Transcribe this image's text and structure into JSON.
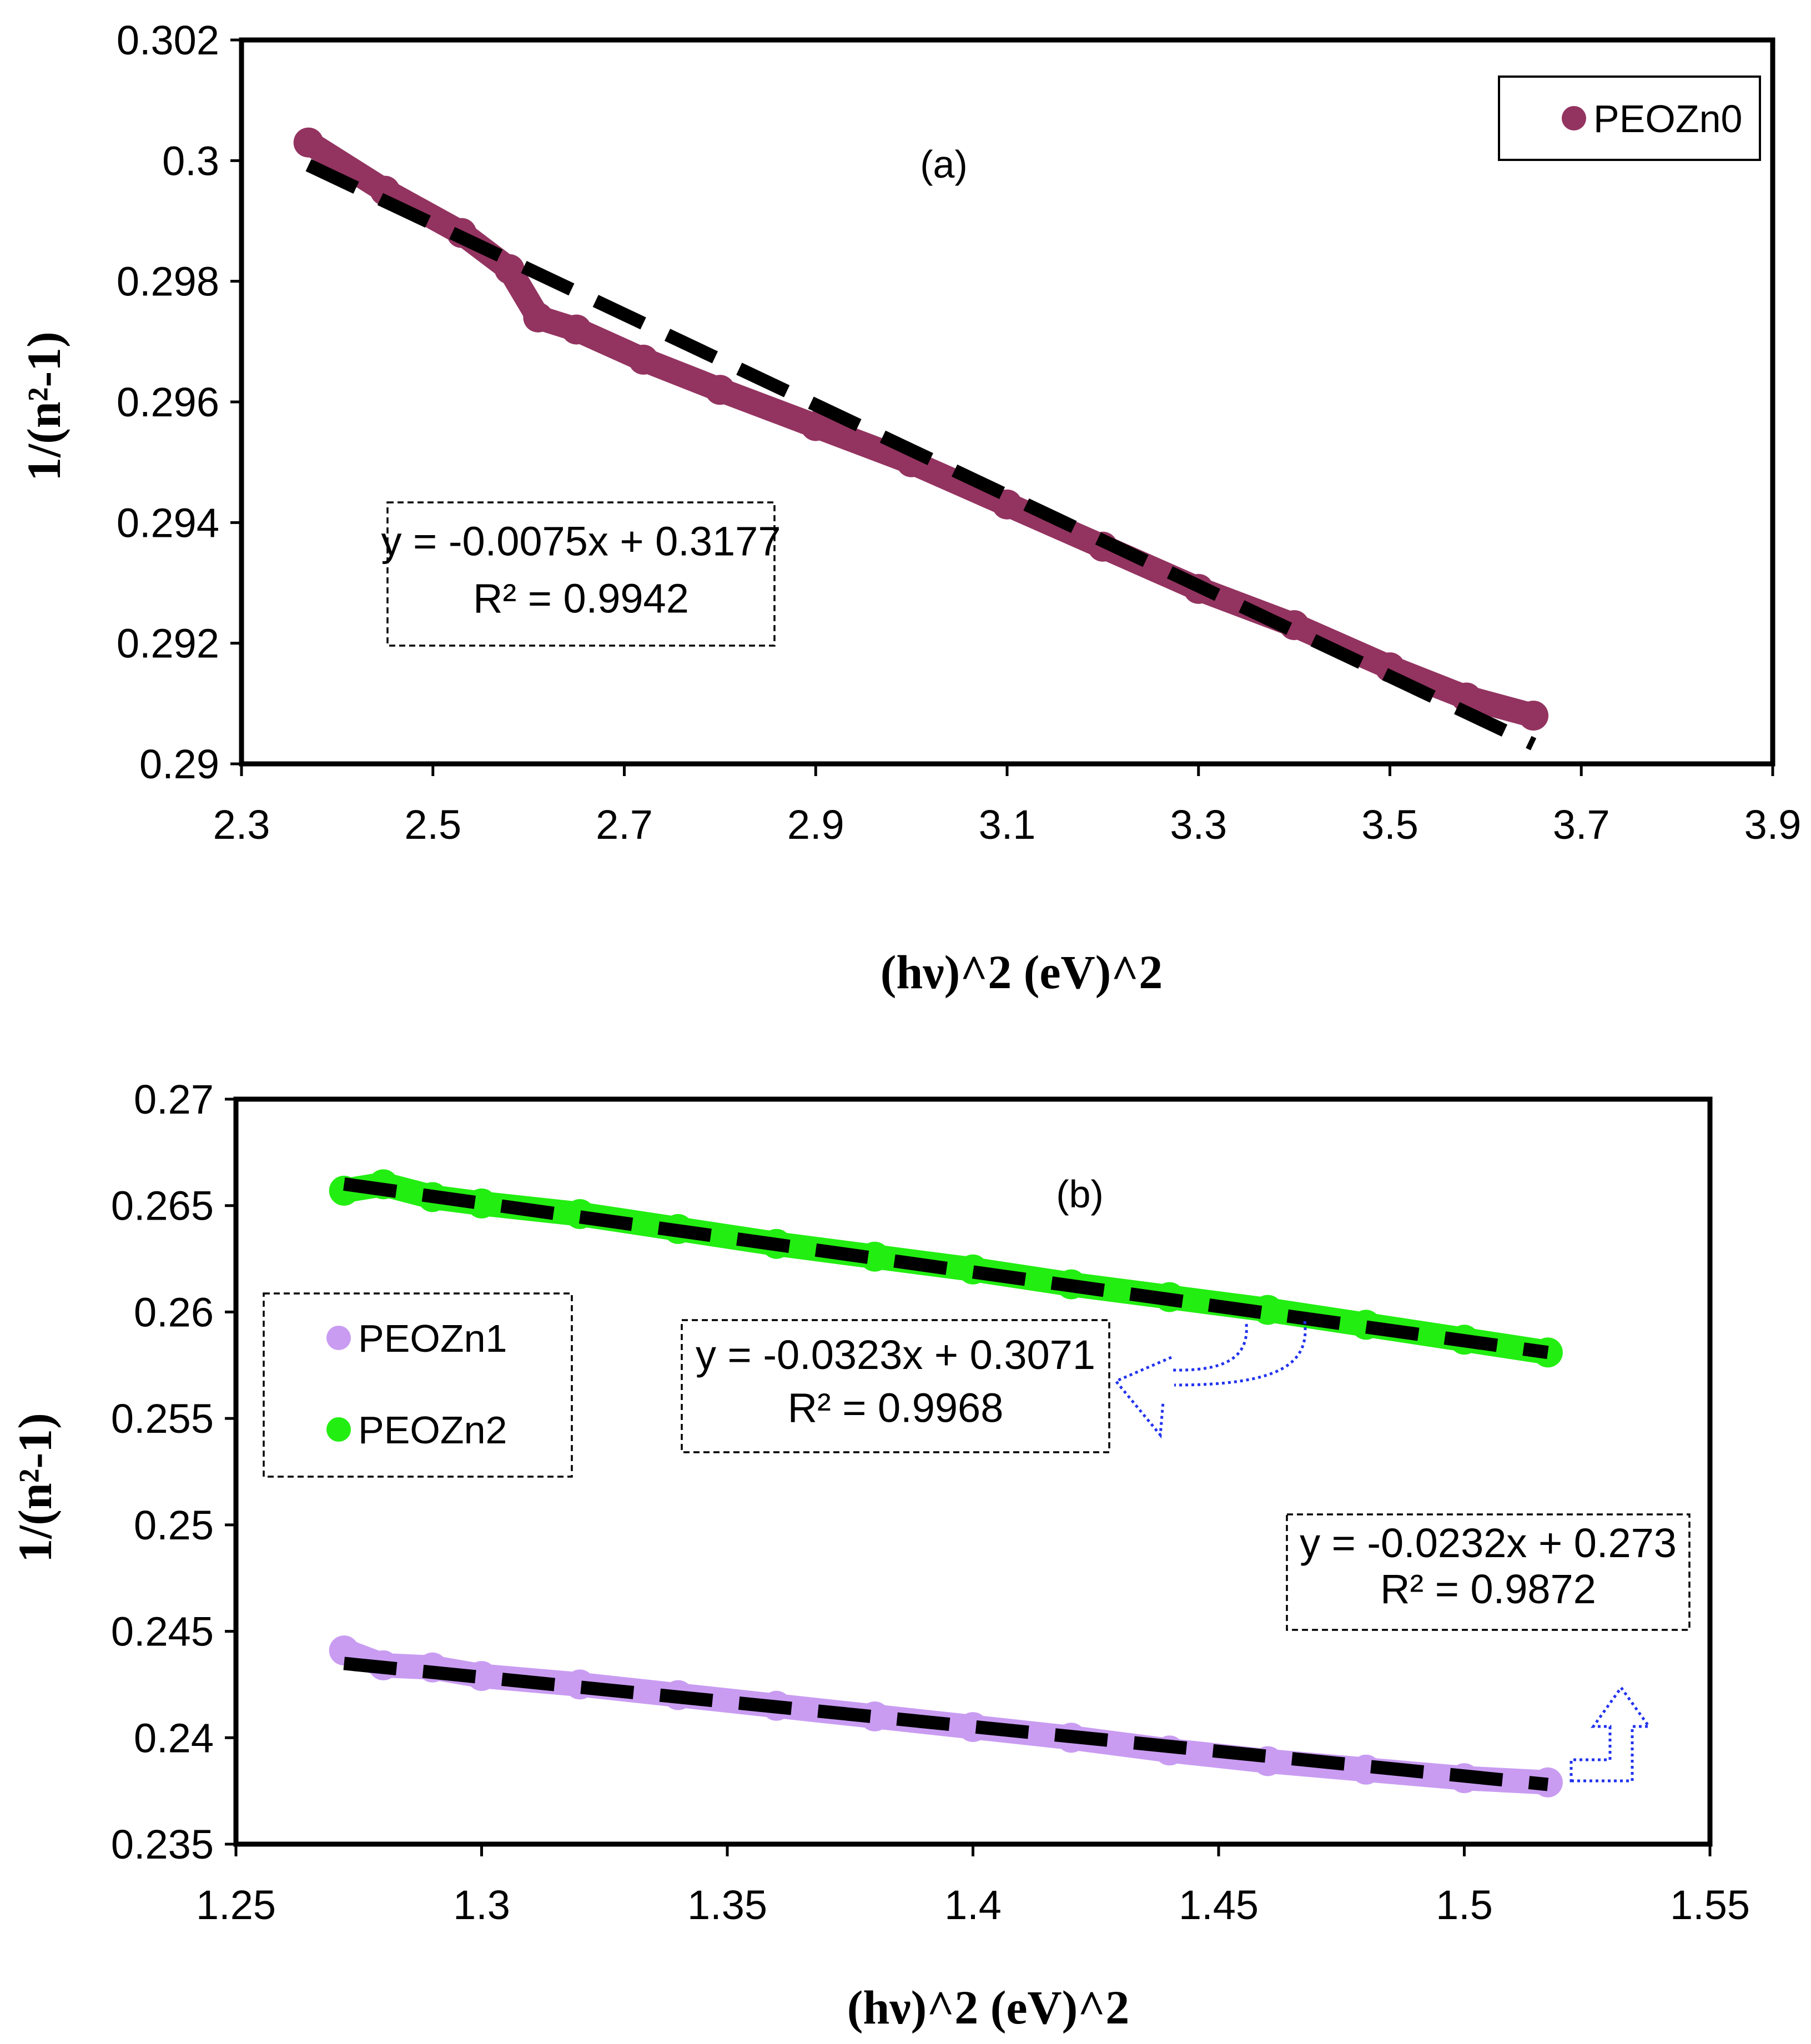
{
  "chart_data": [
    {
      "id": "a",
      "type": "scatter",
      "panel_label": "(a)",
      "xlabel": "(hν)^2 (eV)^2",
      "ylabel": "1/(n²-1)",
      "xlim": [
        2.3,
        3.9
      ],
      "ylim": [
        0.29,
        0.302
      ],
      "xticks": [
        2.3,
        2.5,
        2.7,
        2.9,
        3.1,
        3.3,
        3.5,
        3.7,
        3.9
      ],
      "yticks": [
        0.29,
        0.292,
        0.294,
        0.296,
        0.298,
        0.3,
        0.302
      ],
      "xtick_labels": [
        "2.3",
        "2.5",
        "2.7",
        "2.9",
        "3.1",
        "3.3",
        "3.5",
        "3.7",
        "3.9"
      ],
      "ytick_labels": [
        "0.29",
        "0.292",
        "0.294",
        "0.296",
        "0.298",
        "0.3",
        "0.302"
      ],
      "legend_position": "top-right",
      "legend_boxed": true,
      "series": [
        {
          "name": "PEOZn0",
          "color": "#933360",
          "x": [
            2.37,
            2.45,
            2.53,
            2.58,
            2.61,
            2.65,
            2.72,
            2.8,
            2.9,
            3.0,
            3.1,
            3.2,
            3.3,
            3.4,
            3.5,
            3.58,
            3.65
          ],
          "y": [
            0.3003,
            0.2995,
            0.2988,
            0.2982,
            0.2974,
            0.2972,
            0.2967,
            0.2962,
            0.2956,
            0.295,
            0.2943,
            0.2936,
            0.2929,
            0.2923,
            0.2916,
            0.2911,
            0.2908
          ],
          "fit": {
            "slope": -0.0075,
            "intercept": 0.3177,
            "x_range": [
              2.37,
              3.65
            ],
            "equation": "y = -0.0075x + 0.3177",
            "r2": "R² = 0.9942"
          }
        }
      ],
      "fit_label_position": "middle-left"
    },
    {
      "id": "b",
      "type": "scatter",
      "panel_label": "(b)",
      "xlabel": "(hν)^2 (eV)^2",
      "ylabel": "1/(n²-1)",
      "xlim": [
        1.25,
        1.55
      ],
      "ylim": [
        0.235,
        0.27
      ],
      "xticks": [
        1.25,
        1.3,
        1.35,
        1.4,
        1.45,
        1.5,
        1.55
      ],
      "yticks": [
        0.235,
        0.24,
        0.245,
        0.25,
        0.255,
        0.26,
        0.265,
        0.27
      ],
      "xtick_labels": [
        "1.25",
        "1.3",
        "1.35",
        "1.4",
        "1.45",
        "1.5",
        "1.55"
      ],
      "ytick_labels": [
        "0.235",
        "0.24",
        "0.245",
        "0.25",
        "0.255",
        "0.26",
        "0.265",
        "0.27"
      ],
      "legend_position": "middle-left",
      "legend_boxed": true,
      "series": [
        {
          "name": "PEOZn1",
          "color": "#c99cf2",
          "x": [
            1.272,
            1.28,
            1.29,
            1.3,
            1.32,
            1.34,
            1.36,
            1.38,
            1.4,
            1.42,
            1.44,
            1.46,
            1.48,
            1.5,
            1.517
          ],
          "y": [
            0.2441,
            0.2434,
            0.2433,
            0.2429,
            0.2425,
            0.242,
            0.2415,
            0.241,
            0.2405,
            0.24,
            0.2394,
            0.2389,
            0.2385,
            0.2381,
            0.2379
          ],
          "fit": {
            "slope": -0.0232,
            "intercept": 0.273,
            "x_range": [
              1.272,
              1.517
            ],
            "equation": "y = -0.0232x  + 0.273",
            "r2": "R² = 0.9872"
          }
        },
        {
          "name": "PEOZn2",
          "color": "#22ee11",
          "x": [
            1.272,
            1.28,
            1.29,
            1.3,
            1.32,
            1.34,
            1.36,
            1.38,
            1.4,
            1.42,
            1.44,
            1.46,
            1.48,
            1.5,
            1.517
          ],
          "y": [
            0.2657,
            0.266,
            0.2654,
            0.2651,
            0.2646,
            0.2639,
            0.2632,
            0.2626,
            0.262,
            0.2613,
            0.2607,
            0.2601,
            0.2594,
            0.2587,
            0.2581
          ],
          "fit": {
            "slope": -0.0323,
            "intercept": 0.3071,
            "x_range": [
              1.272,
              1.517
            ],
            "equation": "y = -0.0323x  + 0.3071",
            "r2": "R² = 0.9968"
          }
        }
      ]
    }
  ]
}
